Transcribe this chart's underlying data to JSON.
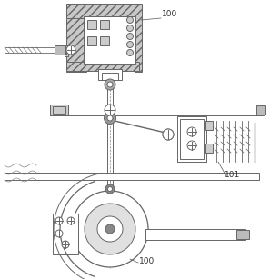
{
  "bg_color": "#ffffff",
  "lc": "#666666",
  "lc2": "#888888",
  "hatch_fc": "#bbbbbb",
  "lw": 0.7,
  "figw": 3.08,
  "figh": 3.07,
  "dpi": 100
}
